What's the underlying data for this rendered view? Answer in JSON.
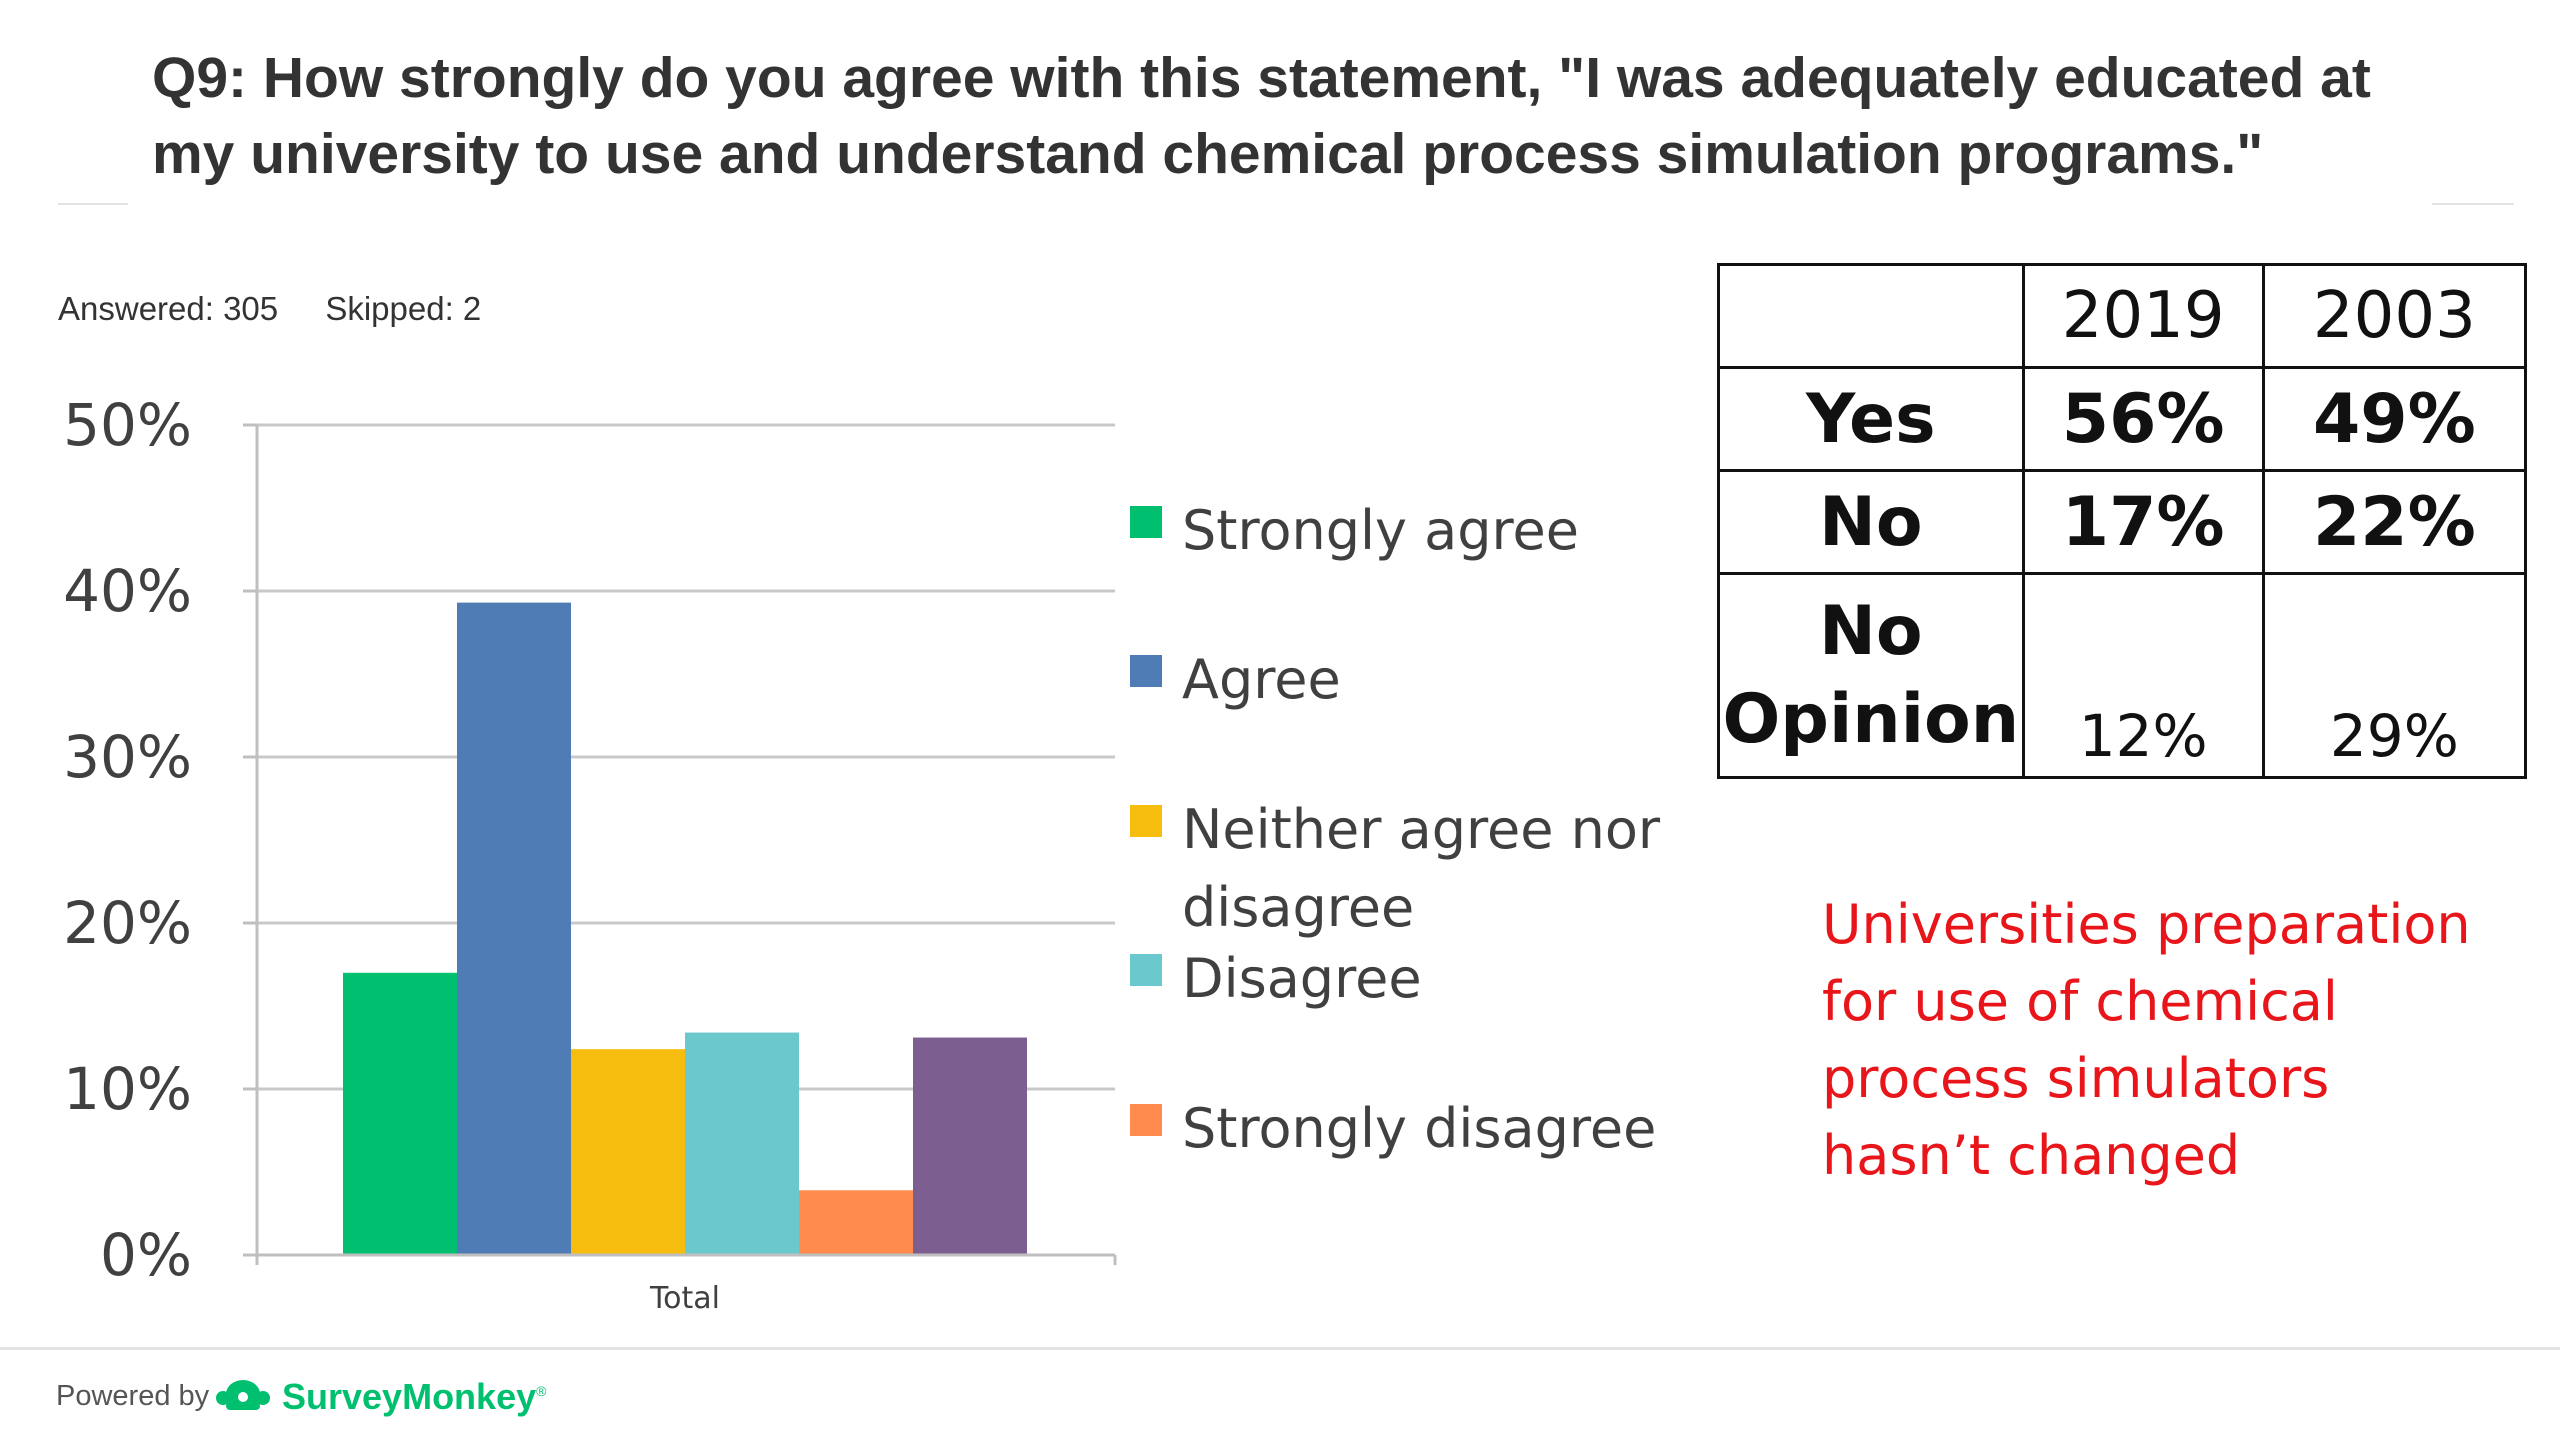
{
  "title": "Q9: How strongly do you agree with this statement, \"I was adequately educated at my university to use and understand chemical process simulation programs.\"",
  "counts": {
    "answered": "Answered: 305",
    "skipped": "Skipped: 2"
  },
  "chart_data": {
    "type": "bar",
    "categories": [
      "Total"
    ],
    "series": [
      {
        "name": "Strongly agree",
        "values": [
          17.0
        ],
        "color": "#00bf6f"
      },
      {
        "name": "Agree",
        "values": [
          39.3
        ],
        "color": "#507cb6"
      },
      {
        "name": "Neither agree nor disagree",
        "values": [
          12.4
        ],
        "color": "#f6bd0f"
      },
      {
        "name": "Disagree",
        "values": [
          13.4
        ],
        "color": "#6bc8cd"
      },
      {
        "name": "Strongly disagree",
        "values": [
          3.9
        ],
        "color": "#ff8b4f"
      },
      {
        "values": [
          13.1
        ],
        "color": "#7d5e90"
      }
    ],
    "y_ticks": [
      "0%",
      "10%",
      "20%",
      "30%",
      "40%",
      "50%"
    ],
    "ylim": [
      0,
      50
    ],
    "grid": true,
    "legend_position": "right"
  },
  "table": {
    "columns": [
      "",
      "2019",
      "2003"
    ],
    "rows": [
      {
        "label": "Yes",
        "values": [
          "56%",
          "49%"
        ]
      },
      {
        "label": "No",
        "values": [
          "17%",
          "22%"
        ]
      },
      {
        "label": "No Opinion",
        "label_line1": "No",
        "label_line2": "Opinion",
        "values": [
          "12%",
          "29%"
        ]
      }
    ]
  },
  "note_lines": [
    "Universities preparation",
    "for use of chemical",
    "process simulators",
    "hasn’t changed"
  ],
  "footer": {
    "powered_by": "Powered by",
    "brand": "SurveyMonkey",
    "brand_mark": "®"
  }
}
